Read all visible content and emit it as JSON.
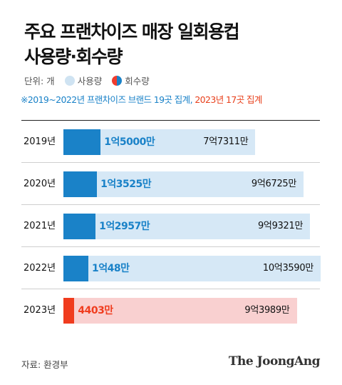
{
  "title_line1": "주요 프랜차이즈 매장 일회용컵",
  "title_line2": "사용량·회수량",
  "legend": {
    "unit": "단위: 개",
    "use_label": "사용량",
    "return_label": "회수량"
  },
  "note": {
    "part1": "※2019~2022년 프랜차이즈 브랜드 19곳 집계, ",
    "part2": "2023년 17곳 집계"
  },
  "source": "자료: 환경부",
  "logo": "The JoongAng",
  "colors": {
    "use_bar": "#d6e8f6",
    "return_bar": "#1a82c8",
    "use_bar_2023": "#f9d0d0",
    "return_bar_2023": "#f03c1e"
  },
  "chart_data": {
    "type": "bar",
    "orientation": "horizontal",
    "categories": [
      "2019년",
      "2020년",
      "2021년",
      "2022년",
      "2023년"
    ],
    "series": [
      {
        "name": "사용량",
        "values": [
          773110000,
          967250000,
          993210000,
          1035900000,
          939890000
        ],
        "labels": [
          "7억7311만",
          "9억6725만",
          "9억9321만",
          "10억3590만",
          "9억3989만"
        ]
      },
      {
        "name": "회수량",
        "values": [
          150000000,
          135250000,
          129570000,
          100480000,
          44030000
        ],
        "labels": [
          "1억5000만",
          "1억3525만",
          "1억2957만",
          "1억48만",
          "4403만"
        ]
      }
    ],
    "xlim": [
      0,
      1035900000
    ],
    "grid": false,
    "legend_position": "top-left"
  }
}
